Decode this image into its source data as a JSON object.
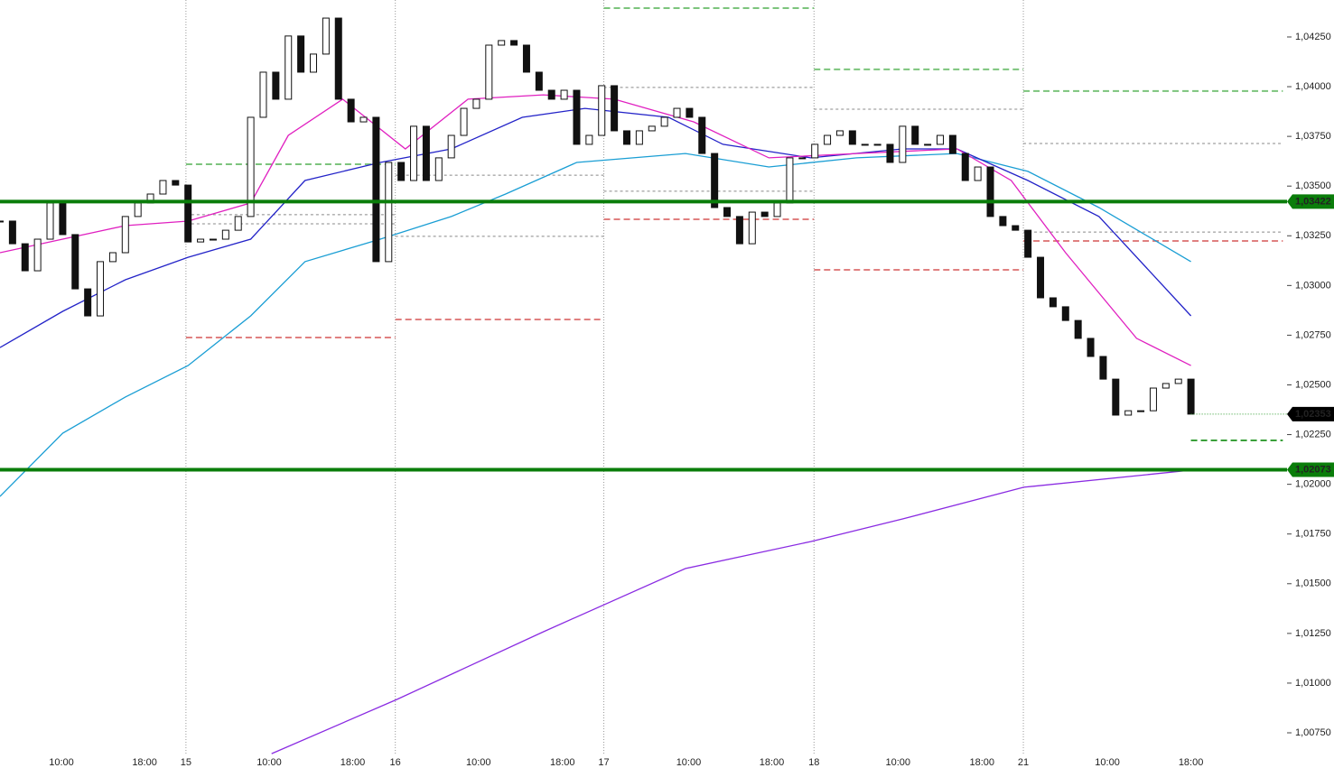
{
  "chart_data": {
    "type": "candlestick",
    "xlim": [
      0,
      308
    ],
    "ylim": [
      1.00573,
      1.04436
    ],
    "xticks": [
      {
        "value": 14.7,
        "label": "10:00"
      },
      {
        "value": 34.6,
        "label": "18:00"
      },
      {
        "value": 44.5,
        "label": "15"
      },
      {
        "value": 64.4,
        "label": "10:00"
      },
      {
        "value": 84.4,
        "label": "18:00"
      },
      {
        "value": 94.6,
        "label": "16"
      },
      {
        "value": 114.5,
        "label": "10:00"
      },
      {
        "value": 134.6,
        "label": "18:00"
      },
      {
        "value": 144.5,
        "label": "17"
      },
      {
        "value": 164.8,
        "label": "10:00"
      },
      {
        "value": 184.7,
        "label": "18:00"
      },
      {
        "value": 194.8,
        "label": "18"
      },
      {
        "value": 214.9,
        "label": "10:00"
      },
      {
        "value": 235,
        "label": "18:00"
      },
      {
        "value": 244.9,
        "label": "21"
      },
      {
        "value": 265,
        "label": "10:00"
      },
      {
        "value": 285,
        "label": "18:00"
      }
    ],
    "yticks": [
      {
        "value": 1.0425,
        "label": "1,04250"
      },
      {
        "value": 1.04,
        "label": "1,04000"
      },
      {
        "value": 1.0375,
        "label": "1,03750"
      },
      {
        "value": 1.035,
        "label": "1,03500"
      },
      {
        "value": 1.0325,
        "label": "1,03250"
      },
      {
        "value": 1.03,
        "label": "1,03000"
      },
      {
        "value": 1.0275,
        "label": "1,02750"
      },
      {
        "value": 1.025,
        "label": "1,02500"
      },
      {
        "value": 1.0225,
        "label": "1,02250"
      },
      {
        "value": 1.02,
        "label": "1,02000"
      },
      {
        "value": 1.0175,
        "label": "1,01750"
      },
      {
        "value": 1.015,
        "label": "1,01500"
      },
      {
        "value": 1.0125,
        "label": "1,01250"
      },
      {
        "value": 1.01,
        "label": "1,01000"
      },
      {
        "value": 1.0075,
        "label": "1,00750"
      }
    ],
    "x": [
      0,
      3,
      6,
      9,
      12,
      15,
      18,
      21,
      24,
      27,
      30,
      33,
      36,
      39,
      42,
      45,
      48,
      51,
      54,
      57,
      60,
      63,
      66,
      69,
      72,
      75,
      78,
      81,
      84,
      87,
      90,
      93,
      96,
      99,
      102,
      105,
      108,
      111,
      114,
      117,
      120,
      123,
      126,
      129,
      132,
      135,
      138,
      141,
      144,
      147,
      150,
      153,
      156,
      159,
      162,
      165,
      168,
      171,
      174,
      177,
      180,
      183,
      186,
      189,
      192,
      195,
      198,
      201,
      204,
      207,
      210,
      213,
      216,
      219,
      222,
      225,
      228,
      231,
      234,
      237,
      240,
      243,
      246,
      249,
      252,
      255,
      258,
      261,
      264,
      267,
      270,
      273,
      276,
      279,
      282,
      285
    ],
    "close": [
      1.03324,
      1.0321,
      1.03074,
      1.03233,
      1.03415,
      1.03256,
      1.02983,
      1.02847,
      1.0312,
      1.03165,
      1.03347,
      1.03415,
      1.0346,
      1.03528,
      1.03505,
      1.03219,
      1.03233,
      1.03233,
      1.03278,
      1.03347,
      1.03846,
      1.04073,
      1.03937,
      1.04255,
      1.04073,
      1.04164,
      1.04345,
      1.03937,
      1.03823,
      1.03846,
      1.0312,
      1.03619,
      1.03528,
      1.03801,
      1.03528,
      1.03642,
      1.03755,
      1.03891,
      1.03937,
      1.04209,
      1.04232,
      1.04209,
      1.04073,
      1.03982,
      1.03937,
      1.03982,
      1.0371,
      1.03755,
      1.04005,
      1.03778,
      1.0371,
      1.03778,
      1.03801,
      1.03846,
      1.03891,
      1.03846,
      1.03664,
      1.03392,
      1.03347,
      1.0321,
      1.03369,
      1.03347,
      1.03415,
      1.03642,
      1.03642,
      1.0371,
      1.03755,
      1.03778,
      1.0371,
      1.0371,
      1.0371,
      1.03619,
      1.03801,
      1.0371,
      1.0371,
      1.03755,
      1.03664,
      1.03528,
      1.03596,
      1.03347,
      1.03301,
      1.03278,
      1.03142,
      1.02938,
      1.02893,
      1.02824,
      1.02734,
      1.02643,
      1.02529,
      1.02348,
      1.0237,
      1.0237,
      1.02484,
      1.02507,
      1.02529,
      1.02353
    ],
    "overlays": [
      {
        "color": "#1a9ed4",
        "x": [
          0,
          15,
          30,
          45,
          60,
          73,
          91,
          108,
          121,
          138,
          164,
          184,
          205,
          229,
          246,
          263,
          285
        ],
        "values": [
          1.01939,
          1.02257,
          1.02439,
          1.02597,
          1.02847,
          1.0312,
          1.03233,
          1.03347,
          1.0346,
          1.03619,
          1.03664,
          1.03596,
          1.03642,
          1.03664,
          1.03574,
          1.03392,
          1.0312
        ]
      },
      {
        "color": "#2323c8",
        "x": [
          0,
          15,
          30,
          45,
          60,
          73,
          91,
          108,
          125,
          140,
          160,
          173,
          194,
          216,
          229,
          246,
          263,
          285
        ],
        "values": [
          1.02688,
          1.0287,
          1.03029,
          1.03142,
          1.03233,
          1.03528,
          1.03619,
          1.03687,
          1.03846,
          1.03891,
          1.03846,
          1.0371,
          1.03642,
          1.03687,
          1.03687,
          1.03528,
          1.03347,
          1.02847
        ]
      },
      {
        "color": "#e020c0",
        "x": [
          0,
          15,
          30,
          45,
          60,
          69,
          82,
          97,
          112,
          130,
          147,
          166,
          184,
          205,
          229,
          242,
          255,
          272,
          285
        ],
        "values": [
          1.03165,
          1.03233,
          1.03301,
          1.03324,
          1.03415,
          1.03755,
          1.03937,
          1.03687,
          1.03937,
          1.03959,
          1.03937,
          1.03823,
          1.03642,
          1.03664,
          1.03687,
          1.03528,
          1.03165,
          1.02734,
          1.02597
        ]
      },
      {
        "color": "#8a2be2",
        "x": [
          65,
          95,
          130,
          164,
          194,
          216,
          245,
          285
        ],
        "values": [
          1.00645,
          1.00918,
          1.01258,
          1.01576,
          1.01712,
          1.01826,
          1.01985,
          1.02071
        ]
      }
    ],
    "levels": [
      {
        "value": 1.0361,
        "x": [
          44.5,
          94.6
        ],
        "color": "#7cc47c"
      },
      {
        "value": 1.04395,
        "x": [
          144.5,
          194.8
        ],
        "color": "#7cc47c"
      },
      {
        "value": 1.04087,
        "x": [
          194.8,
          244.9
        ],
        "color": "#7cc47c"
      },
      {
        "value": 1.03978,
        "x": [
          244.9,
          307
        ],
        "color": "#7cc47c"
      },
      {
        "value": 1.02738,
        "x": [
          44.5,
          94.6
        ],
        "color": "#e08080"
      },
      {
        "value": 1.02829,
        "x": [
          94.6,
          144.5
        ],
        "color": "#e08080"
      },
      {
        "value": 1.03333,
        "x": [
          144.5,
          194.8
        ],
        "color": "#e08080"
      },
      {
        "value": 1.03079,
        "x": [
          194.8,
          244.9
        ],
        "color": "#e08080"
      },
      {
        "value": 1.03224,
        "x": [
          244.9,
          307
        ],
        "color": "#e08080"
      },
      {
        "value": 1.03356,
        "x": [
          44.5,
          94.6
        ],
        "color": "#888888"
      },
      {
        "value": 1.0331,
        "x": [
          44.5,
          94.6
        ],
        "color": "#888888"
      },
      {
        "value": 1.03555,
        "x": [
          94.6,
          144.5
        ],
        "color": "#888888"
      },
      {
        "value": 1.03247,
        "x": [
          94.6,
          144.5
        ],
        "color": "#888888"
      },
      {
        "value": 1.03996,
        "x": [
          144.5,
          194.8
        ],
        "color": "#888888"
      },
      {
        "value": 1.03474,
        "x": [
          144.5,
          194.8
        ],
        "color": "#888888"
      },
      {
        "value": 1.03887,
        "x": [
          194.8,
          244.9
        ],
        "color": "#888888"
      },
      {
        "value": 1.03714,
        "x": [
          244.9,
          307
        ],
        "color": "#888888"
      },
      {
        "value": 1.03269,
        "x": [
          244.9,
          307
        ],
        "color": "#888888"
      },
      {
        "value": 1.02221,
        "x": [
          285,
          307
        ],
        "color": "#3aa03a"
      }
    ],
    "price_lines": [
      {
        "value": 1.03422,
        "label": "1,03422",
        "color": "#0a7d0a"
      },
      {
        "value": 1.02073,
        "label": "1,02073",
        "color": "#0a7d0a"
      }
    ],
    "last_price": {
      "value": 1.02353,
      "label": "1,02353",
      "color": "#000000"
    }
  }
}
